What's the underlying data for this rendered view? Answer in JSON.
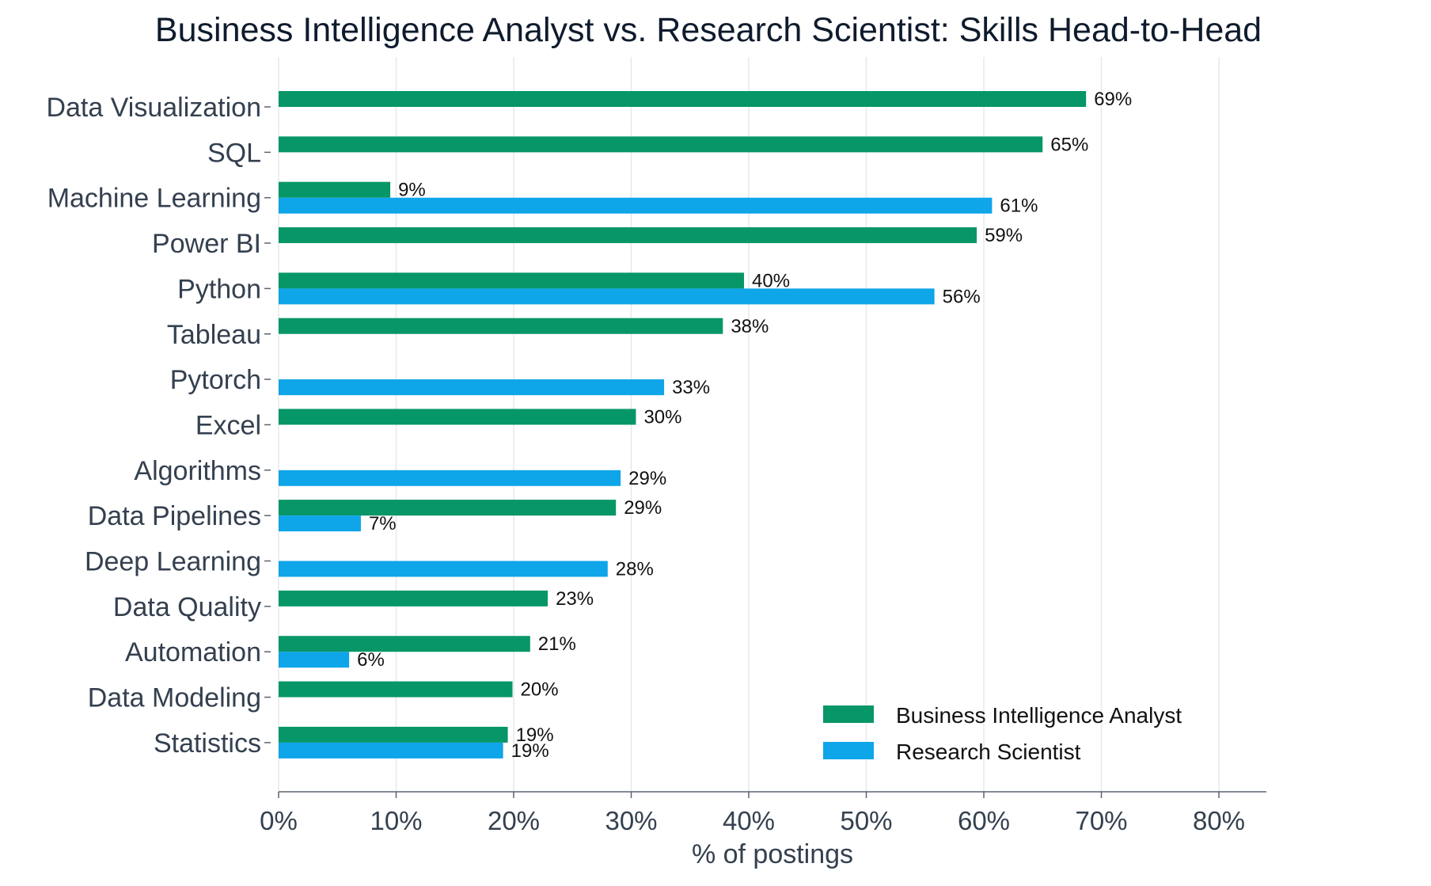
{
  "chart_data": {
    "type": "bar",
    "orientation": "horizontal",
    "title": "Business Intelligence Analyst vs. Research Scientist: Skills Head-to-Head",
    "xlabel": "% of postings",
    "ylabel": "",
    "xlim": [
      0,
      84
    ],
    "x_ticks": [
      "0%",
      "10%",
      "20%",
      "30%",
      "40%",
      "50%",
      "60%",
      "70%",
      "80%"
    ],
    "grid": "vertical",
    "legend_position": "bottom-right",
    "categories": [
      "Data Visualization",
      "SQL",
      "Machine Learning",
      "Power BI",
      "Python",
      "Tableau",
      "Pytorch",
      "Excel",
      "Algorithms",
      "Data Pipelines",
      "Deep Learning",
      "Data Quality",
      "Automation",
      "Data Modeling",
      "Statistics"
    ],
    "series": [
      {
        "name": "Business Intelligence Analyst",
        "color": "#069668",
        "values": [
          68.7,
          65.0,
          9.5,
          59.4,
          39.6,
          37.8,
          null,
          30.4,
          null,
          28.7,
          null,
          22.9,
          21.4,
          19.9,
          19.5
        ],
        "labels": [
          "69%",
          "65%",
          "9%",
          "59%",
          "40%",
          "38%",
          "",
          "30%",
          "",
          "29%",
          "",
          "23%",
          "21%",
          "20%",
          "19%"
        ]
      },
      {
        "name": "Research Scientist",
        "color": "#0ea5e9",
        "values": [
          null,
          null,
          60.7,
          null,
          55.8,
          null,
          32.8,
          null,
          29.1,
          7.0,
          28.0,
          null,
          6.0,
          null,
          19.1
        ],
        "labels": [
          "",
          "",
          "61%",
          "",
          "56%",
          "",
          "33%",
          "",
          "29%",
          "7%",
          "28%",
          "",
          "6%",
          "",
          "19%"
        ]
      }
    ]
  }
}
